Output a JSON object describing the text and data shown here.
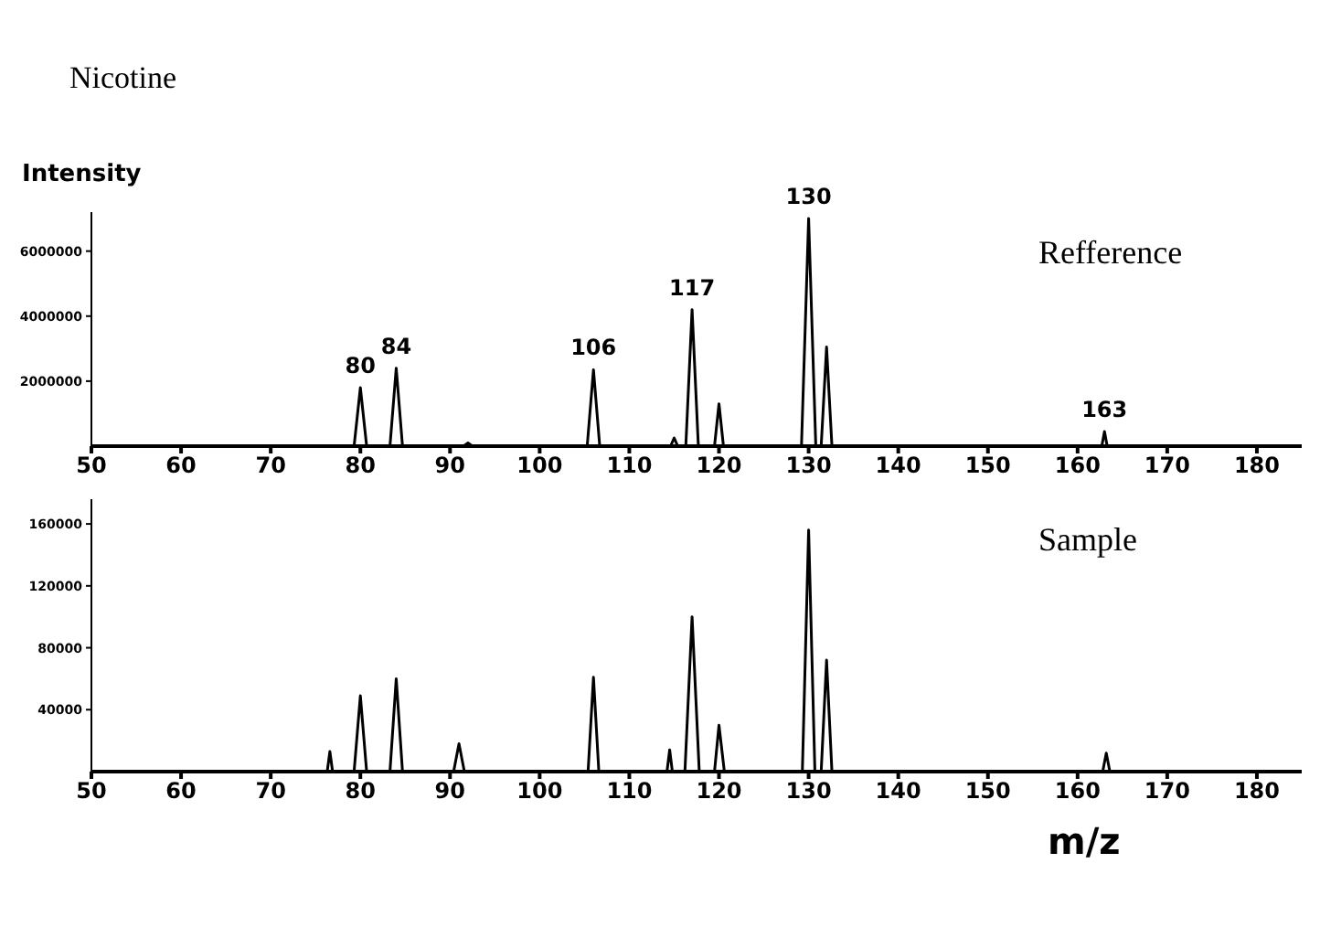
{
  "chart_data": [
    {
      "type": "line",
      "title": "Nicotine",
      "ylabel": "Intensity",
      "marker": "none",
      "line_style": "solid",
      "xlim": [
        50,
        185
      ],
      "xticks": [
        50,
        60,
        70,
        80,
        90,
        100,
        110,
        120,
        130,
        140,
        150,
        160,
        170,
        180
      ],
      "ylim": [
        0,
        7200000
      ],
      "yticks": [
        2000000,
        4000000,
        6000000
      ],
      "series": [
        {
          "color": "#000000",
          "x": [
            50,
            79.3,
            80,
            80.7,
            83.3,
            84,
            84.7,
            91.5,
            92,
            92.5,
            105.3,
            106,
            106.7,
            114.6,
            115,
            115.4,
            116.3,
            117,
            117.7,
            119.5,
            120,
            120.5,
            129.2,
            130,
            130.8,
            131.4,
            132,
            132.6,
            162.7,
            163,
            163.3,
            185
          ],
          "values": [
            0,
            0,
            1800000,
            0,
            0,
            2400000,
            0,
            0,
            100000,
            0,
            0,
            2350000,
            0,
            0,
            250000,
            0,
            0,
            4200000,
            0,
            0,
            1300000,
            0,
            0,
            7000000,
            0,
            0,
            3050000,
            0,
            0,
            450000,
            0,
            0
          ]
        }
      ],
      "annotations": [
        {
          "text": "80",
          "x": 80,
          "y": 1800000
        },
        {
          "text": "84",
          "x": 84,
          "y": 2400000
        },
        {
          "text": "106",
          "x": 106,
          "y": 2350000
        },
        {
          "text": "117",
          "x": 117,
          "y": 4200000
        },
        {
          "text": "130",
          "x": 130,
          "y": 7000000
        },
        {
          "text": "163",
          "x": 163,
          "y": 450000
        },
        "Refference"
      ]
    },
    {
      "type": "line",
      "xlabel": "m/z",
      "marker": "none",
      "line_style": "solid",
      "xlim": [
        50,
        185
      ],
      "xticks": [
        50,
        60,
        70,
        80,
        90,
        100,
        110,
        120,
        130,
        140,
        150,
        160,
        170,
        180
      ],
      "ylim": [
        0,
        176000
      ],
      "yticks": [
        40000,
        80000,
        120000,
        160000
      ],
      "series": [
        {
          "color": "#000000",
          "x": [
            50,
            76.3,
            76.6,
            76.9,
            79.3,
            80,
            80.7,
            83.3,
            84,
            84.7,
            90.4,
            91,
            91.6,
            105.4,
            106,
            106.6,
            114.2,
            114.5,
            114.8,
            116.2,
            117,
            117.8,
            119.5,
            120,
            120.6,
            129.3,
            130,
            130.7,
            131.4,
            132,
            132.6,
            162.8,
            163.2,
            163.6,
            185
          ],
          "values": [
            0,
            0,
            13000,
            0,
            0,
            49000,
            0,
            0,
            60000,
            0,
            0,
            18000,
            0,
            0,
            61000,
            0,
            0,
            14000,
            0,
            0,
            100000,
            0,
            0,
            30000,
            0,
            0,
            156000,
            0,
            0,
            72000,
            0,
            0,
            12000,
            0,
            0
          ]
        }
      ],
      "annotations": [
        "Sample"
      ]
    }
  ]
}
